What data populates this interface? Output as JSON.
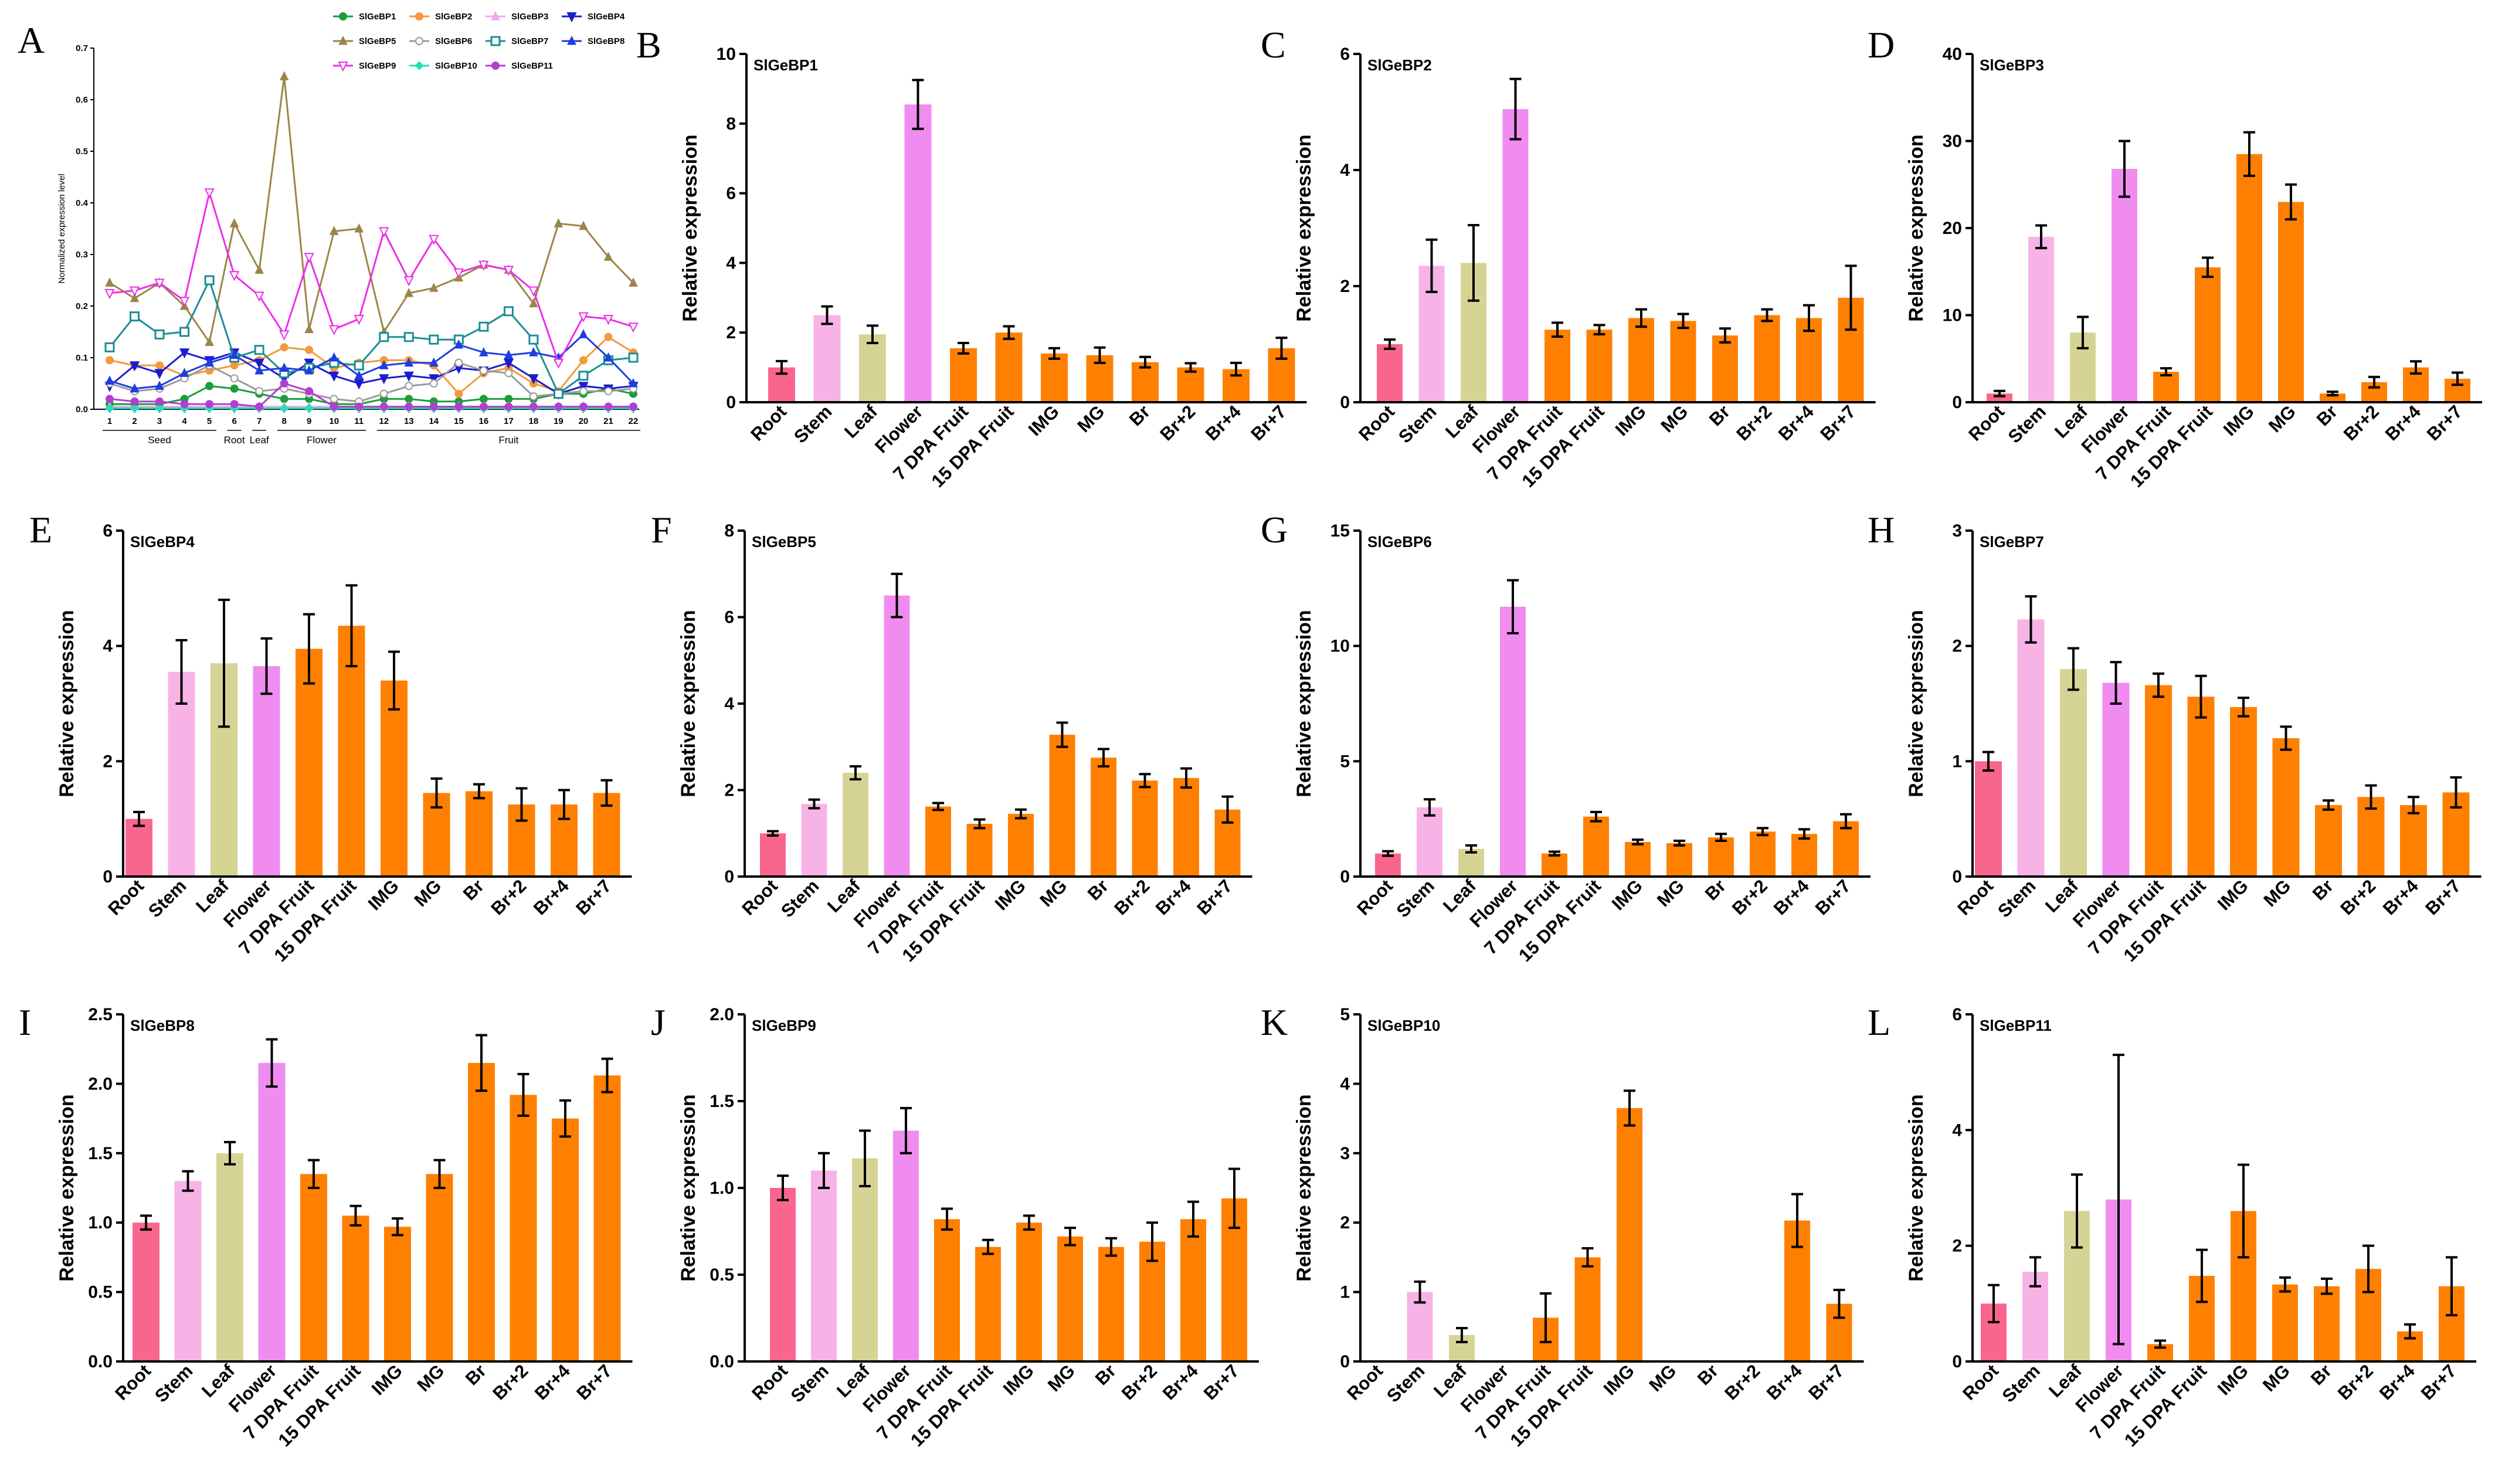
{
  "figure": {
    "background": "#ffffff",
    "bar_colors": {
      "Root": "#f9668d",
      "Stem": "#f7b3e6",
      "Leaf": "#d6d495",
      "Flower": "#f08cf0",
      "default": "#ff8000"
    }
  },
  "chart_data": [
    {
      "panel": "A",
      "type": "line",
      "title": "",
      "xlabel": "",
      "ylabel": "Normalized expression level",
      "x": [
        "1",
        "2",
        "3",
        "4",
        "5",
        "6",
        "7",
        "8",
        "9",
        "10",
        "11",
        "12",
        "13",
        "14",
        "15",
        "16",
        "17",
        "18",
        "19",
        "20",
        "21",
        "22"
      ],
      "groups": [
        {
          "label": "Seed",
          "from": 1,
          "to": 5
        },
        {
          "label": "Root",
          "from": 6,
          "to": 6
        },
        {
          "label": "Leaf",
          "from": 7,
          "to": 7
        },
        {
          "label": "Flower",
          "from": 8,
          "to": 11
        },
        {
          "label": "Fruit",
          "from": 12,
          "to": 22
        }
      ],
      "yticks": [
        "0.0",
        "0.1",
        "0.2",
        "0.3",
        "0.4",
        "0.5",
        "0.6",
        "0.7"
      ],
      "ylim": [
        0,
        0.7
      ],
      "series": [
        {
          "name": "SlGeBP1",
          "color": "#1a9e3a",
          "marker": "circle",
          "values": [
            0.01,
            0.01,
            0.01,
            0.02,
            0.045,
            0.04,
            0.03,
            0.02,
            0.02,
            0.01,
            0.01,
            0.02,
            0.02,
            0.015,
            0.015,
            0.02,
            0.02,
            0.02,
            0.03,
            0.03,
            0.04,
            0.03
          ]
        },
        {
          "name": "SlGeBP2",
          "color": "#f39a3b",
          "marker": "circle",
          "values": [
            0.095,
            0.085,
            0.085,
            0.065,
            0.075,
            0.085,
            0.095,
            0.12,
            0.115,
            0.08,
            0.09,
            0.095,
            0.095,
            0.085,
            0.03,
            0.07,
            0.08,
            0.05,
            0.035,
            0.095,
            0.14,
            0.11
          ]
        },
        {
          "name": "SlGeBP3",
          "color": "#f3a6f0",
          "marker": "triangle",
          "values": [
            0.005,
            0.005,
            0.005,
            0.005,
            0.005,
            0.005,
            0.005,
            0.005,
            0.005,
            0.005,
            0.005,
            0.005,
            0.005,
            0.005,
            0.005,
            0.005,
            0.005,
            0.005,
            0.005,
            0.005,
            0.005,
            0.005
          ]
        },
        {
          "name": "SlGeBP4",
          "color": "#1c1ccf",
          "marker": "down",
          "values": [
            0.045,
            0.085,
            0.07,
            0.11,
            0.095,
            0.11,
            0.09,
            0.06,
            0.09,
            0.065,
            0.05,
            0.06,
            0.065,
            0.06,
            0.08,
            0.075,
            0.09,
            0.06,
            0.03,
            0.045,
            0.04,
            0.045
          ]
        },
        {
          "name": "SlGeBP5",
          "color": "#9b8648",
          "marker": "triangle",
          "values": [
            0.245,
            0.215,
            0.245,
            0.2,
            0.13,
            0.36,
            0.27,
            0.645,
            0.155,
            0.345,
            0.35,
            0.15,
            0.225,
            0.235,
            0.255,
            0.28,
            0.27,
            0.205,
            0.36,
            0.355,
            0.295,
            0.245
          ]
        },
        {
          "name": "SlGeBP6",
          "color": "#9a9a9a",
          "marker": "circle",
          "values": [
            0.05,
            0.035,
            0.04,
            0.06,
            0.085,
            0.06,
            0.035,
            0.04,
            0.03,
            0.02,
            0.015,
            0.03,
            0.045,
            0.05,
            0.09,
            0.075,
            0.07,
            0.025,
            0.03,
            0.035,
            0.035,
            0.04
          ]
        },
        {
          "name": "SlGeBP7",
          "color": "#1a8e96",
          "marker": "square",
          "values": [
            0.12,
            0.18,
            0.145,
            0.15,
            0.25,
            0.1,
            0.115,
            0.07,
            0.08,
            0.09,
            0.085,
            0.14,
            0.14,
            0.135,
            0.135,
            0.16,
            0.19,
            0.135,
            0.03,
            0.065,
            0.095,
            0.1
          ]
        },
        {
          "name": "SlGeBP8",
          "color": "#1f3de0",
          "marker": "triangle",
          "values": [
            0.055,
            0.04,
            0.045,
            0.07,
            0.09,
            0.105,
            0.075,
            0.08,
            0.075,
            0.1,
            0.065,
            0.085,
            0.09,
            0.09,
            0.125,
            0.11,
            0.105,
            0.11,
            0.1,
            0.145,
            0.1,
            0.05
          ]
        },
        {
          "name": "SlGeBP9",
          "color": "#ee2ee8",
          "marker": "down",
          "values": [
            0.225,
            0.23,
            0.245,
            0.21,
            0.42,
            0.26,
            0.22,
            0.145,
            0.295,
            0.155,
            0.175,
            0.345,
            0.25,
            0.33,
            0.265,
            0.28,
            0.27,
            0.23,
            0.09,
            0.18,
            0.175,
            0.16
          ]
        },
        {
          "name": "SlGeBP10",
          "color": "#22e0b8",
          "marker": "diamond",
          "values": [
            0.002,
            0.002,
            0.002,
            0.002,
            0.002,
            0.002,
            0.002,
            0.002,
            0.002,
            0.002,
            0.002,
            0.002,
            0.002,
            0.002,
            0.002,
            0.002,
            0.002,
            0.002,
            0.002,
            0.002,
            0.002,
            0.002
          ]
        },
        {
          "name": "SlGeBP11",
          "color": "#b13fd1",
          "marker": "circle",
          "values": [
            0.02,
            0.015,
            0.015,
            0.01,
            0.01,
            0.01,
            0.005,
            0.05,
            0.035,
            0.005,
            0.005,
            0.005,
            0.005,
            0.005,
            0.005,
            0.005,
            0.005,
            0.005,
            0.005,
            0.005,
            0.005,
            0.005
          ]
        }
      ]
    },
    {
      "panel": "B",
      "type": "bar",
      "title": "SlGeBP1",
      "ylabel": "Relative expression",
      "categories": [
        "Root",
        "Stem",
        "Leaf",
        "Flower",
        "7 DPA Fruit",
        "15 DPA Fruit",
        "IMG",
        "MG",
        "Br",
        "Br+2",
        "Br+4",
        "Br+7"
      ],
      "values": [
        1.0,
        2.5,
        1.95,
        8.55,
        1.55,
        2.0,
        1.4,
        1.35,
        1.15,
        1.0,
        0.95,
        1.55
      ],
      "errors": [
        0.18,
        0.25,
        0.25,
        0.7,
        0.15,
        0.18,
        0.15,
        0.22,
        0.15,
        0.12,
        0.18,
        0.3
      ],
      "yticks": [
        "0",
        "2",
        "4",
        "6",
        "8",
        "10"
      ],
      "ylim": [
        0,
        10
      ]
    },
    {
      "panel": "C",
      "type": "bar",
      "title": "SlGeBP2",
      "ylabel": "Relative expression",
      "categories": [
        "Root",
        "Stem",
        "Leaf",
        "Flower",
        "7 DPA Fruit",
        "15 DPA Fruit",
        "IMG",
        "MG",
        "Br",
        "Br+2",
        "Br+4",
        "Br+7"
      ],
      "values": [
        1.0,
        2.35,
        2.4,
        5.05,
        1.25,
        1.25,
        1.45,
        1.4,
        1.15,
        1.5,
        1.45,
        1.8
      ],
      "errors": [
        0.08,
        0.45,
        0.65,
        0.52,
        0.12,
        0.08,
        0.15,
        0.12,
        0.12,
        0.1,
        0.22,
        0.55
      ],
      "yticks": [
        "0",
        "2",
        "4",
        "6"
      ],
      "ylim": [
        0,
        6
      ]
    },
    {
      "panel": "D",
      "type": "bar",
      "title": "SlGeBP3",
      "ylabel": "Relative expression",
      "categories": [
        "Root",
        "Stem",
        "Leaf",
        "Flower",
        "7 DPA Fruit",
        "15 DPA Fruit",
        "IMG",
        "MG",
        "Br",
        "Br+2",
        "Br+4",
        "Br+7"
      ],
      "values": [
        1.0,
        19.0,
        8.0,
        26.8,
        3.5,
        15.5,
        28.5,
        23.0,
        1.0,
        2.3,
        4.0,
        2.7
      ],
      "errors": [
        0.3,
        1.3,
        1.8,
        3.2,
        0.4,
        1.1,
        2.5,
        2.0,
        0.2,
        0.6,
        0.7,
        0.7
      ],
      "yticks": [
        "0",
        "10",
        "20",
        "30",
        "40"
      ],
      "ylim": [
        0,
        40
      ]
    },
    {
      "panel": "E",
      "type": "bar",
      "title": "SlGeBP4",
      "ylabel": "Relative expression",
      "categories": [
        "Root",
        "Stem",
        "Leaf",
        "Flower",
        "7 DPA Fruit",
        "15 DPA Fruit",
        "IMG",
        "MG",
        "Br",
        "Br+2",
        "Br+4",
        "Br+7"
      ],
      "values": [
        1.0,
        3.55,
        3.7,
        3.65,
        3.95,
        4.35,
        3.4,
        1.45,
        1.48,
        1.25,
        1.25,
        1.45
      ],
      "errors": [
        0.12,
        0.55,
        1.1,
        0.48,
        0.6,
        0.7,
        0.5,
        0.25,
        0.12,
        0.28,
        0.25,
        0.22
      ],
      "yticks": [
        "0",
        "2",
        "4",
        "6"
      ],
      "ylim": [
        0,
        6
      ]
    },
    {
      "panel": "F",
      "type": "bar",
      "title": "SlGeBP5",
      "ylabel": "Relative expression",
      "categories": [
        "Root",
        "Stem",
        "Leaf",
        "Flower",
        "7 DPA Fruit",
        "15 DPA Fruit",
        "IMG",
        "MG",
        "Br",
        "Br+2",
        "Br+4",
        "Br+7"
      ],
      "values": [
        1.0,
        1.68,
        2.4,
        6.5,
        1.62,
        1.22,
        1.45,
        3.28,
        2.75,
        2.22,
        2.28,
        1.55
      ],
      "errors": [
        0.05,
        0.1,
        0.15,
        0.5,
        0.08,
        0.1,
        0.1,
        0.28,
        0.2,
        0.15,
        0.22,
        0.3
      ],
      "yticks": [
        "0",
        "2",
        "4",
        "6",
        "8"
      ],
      "ylim": [
        0,
        8
      ]
    },
    {
      "panel": "G",
      "type": "bar",
      "title": "SlGeBP6",
      "ylabel": "Relative expression",
      "categories": [
        "Root",
        "Stem",
        "Leaf",
        "Flower",
        "7 DPA Fruit",
        "15 DPA Fruit",
        "IMG",
        "MG",
        "Br",
        "Br+2",
        "Br+4",
        "Br+7"
      ],
      "values": [
        1.0,
        3.0,
        1.2,
        11.7,
        1.0,
        2.6,
        1.5,
        1.45,
        1.7,
        1.95,
        1.85,
        2.4
      ],
      "errors": [
        0.1,
        0.35,
        0.15,
        1.15,
        0.08,
        0.2,
        0.1,
        0.1,
        0.15,
        0.15,
        0.2,
        0.3
      ],
      "yticks": [
        "0",
        "5",
        "10",
        "15"
      ],
      "ylim": [
        0,
        15
      ]
    },
    {
      "panel": "H",
      "type": "bar",
      "title": "SlGeBP7",
      "ylabel": "Relative expression",
      "categories": [
        "Root",
        "Stem",
        "Leaf",
        "Flower",
        "7 DPA Fruit",
        "15 DPA Fruit",
        "IMG",
        "MG",
        "Br",
        "Br+2",
        "Br+4",
        "Br+7"
      ],
      "values": [
        1.0,
        2.23,
        1.8,
        1.68,
        1.66,
        1.56,
        1.47,
        1.2,
        0.62,
        0.69,
        0.62,
        0.73
      ],
      "errors": [
        0.08,
        0.2,
        0.18,
        0.18,
        0.1,
        0.18,
        0.08,
        0.1,
        0.04,
        0.1,
        0.07,
        0.13
      ],
      "yticks": [
        "0",
        "1",
        "2",
        "3"
      ],
      "ylim": [
        0,
        3
      ]
    },
    {
      "panel": "I",
      "type": "bar",
      "title": "SlGeBP8",
      "ylabel": "Relative expression",
      "categories": [
        "Root",
        "Stem",
        "Leaf",
        "Flower",
        "7 DPA Fruit",
        "15 DPA Fruit",
        "IMG",
        "MG",
        "Br",
        "Br+2",
        "Br+4",
        "Br+7"
      ],
      "values": [
        1.0,
        1.3,
        1.5,
        2.15,
        1.35,
        1.05,
        0.97,
        1.35,
        2.15,
        1.92,
        1.75,
        2.06
      ],
      "errors": [
        0.05,
        0.07,
        0.08,
        0.17,
        0.1,
        0.07,
        0.06,
        0.1,
        0.2,
        0.15,
        0.13,
        0.12
      ],
      "yticks": [
        "0.0",
        "0.5",
        "1.0",
        "1.5",
        "2.0",
        "2.5"
      ],
      "ylim": [
        0,
        2.5
      ]
    },
    {
      "panel": "J",
      "type": "bar",
      "title": "SlGeBP9",
      "ylabel": "Relative expression",
      "categories": [
        "Root",
        "Stem",
        "Leaf",
        "Flower",
        "7 DPA Fruit",
        "15 DPA Fruit",
        "IMG",
        "MG",
        "Br",
        "Br+2",
        "Br+4",
        "Br+7"
      ],
      "values": [
        1.0,
        1.1,
        1.17,
        1.33,
        0.82,
        0.66,
        0.8,
        0.72,
        0.66,
        0.69,
        0.82,
        0.94
      ],
      "errors": [
        0.07,
        0.1,
        0.16,
        0.13,
        0.06,
        0.04,
        0.04,
        0.05,
        0.05,
        0.11,
        0.1,
        0.17
      ],
      "yticks": [
        "0.0",
        "0.5",
        "1.0",
        "1.5",
        "2.0"
      ],
      "ylim": [
        0,
        2
      ]
    },
    {
      "panel": "K",
      "type": "bar",
      "title": "SlGeBP10",
      "ylabel": "Relative expression",
      "categories": [
        "Root",
        "Stem",
        "Leaf",
        "Flower",
        "7 DPA Fruit",
        "15 DPA Fruit",
        "IMG",
        "MG",
        "Br",
        "Br+2",
        "Br+4",
        "Br+7"
      ],
      "values": [
        0,
        1.0,
        0.38,
        0,
        0.63,
        1.5,
        3.65,
        0,
        0,
        0,
        2.03,
        0.83
      ],
      "errors": [
        0,
        0.15,
        0.1,
        0,
        0.35,
        0.13,
        0.25,
        0,
        0,
        0,
        0.38,
        0.2
      ],
      "yticks": [
        "0",
        "1",
        "2",
        "3",
        "4",
        "5"
      ],
      "ylim": [
        0,
        5
      ]
    },
    {
      "panel": "L",
      "type": "bar",
      "title": "SlGeBP11",
      "ylabel": "Relative expression",
      "categories": [
        "Root",
        "Stem",
        "Leaf",
        "Flower",
        "7 DPA Fruit",
        "15 DPA Fruit",
        "IMG",
        "MG",
        "Br",
        "Br+2",
        "Br+4",
        "Br+7"
      ],
      "values": [
        1.0,
        1.55,
        2.6,
        2.8,
        0.3,
        1.48,
        2.6,
        1.33,
        1.3,
        1.6,
        0.52,
        1.3
      ],
      "errors": [
        0.32,
        0.25,
        0.63,
        2.5,
        0.06,
        0.45,
        0.8,
        0.12,
        0.13,
        0.4,
        0.12,
        0.5
      ],
      "yticks": [
        "0",
        "2",
        "4",
        "6"
      ],
      "ylim": [
        0,
        6
      ]
    }
  ]
}
